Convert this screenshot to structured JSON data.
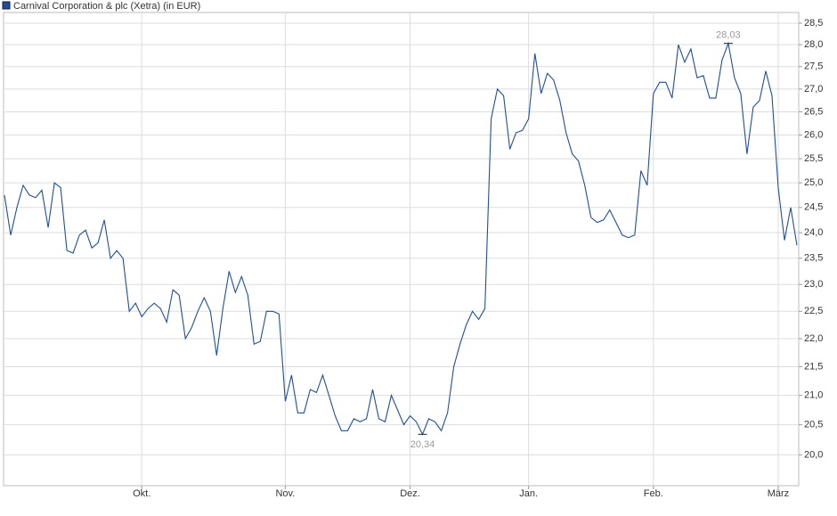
{
  "chart_data": {
    "type": "line",
    "categories": [
      null,
      null,
      null,
      null,
      null,
      null,
      null,
      null,
      null,
      null,
      null,
      null,
      null,
      null,
      null,
      null,
      null,
      null,
      null,
      null,
      null,
      null,
      "Okt.",
      null,
      null,
      null,
      null,
      null,
      null,
      null,
      null,
      null,
      null,
      null,
      null,
      null,
      null,
      null,
      null,
      null,
      null,
      null,
      null,
      null,
      null,
      "Nov.",
      null,
      null,
      null,
      null,
      null,
      null,
      null,
      null,
      null,
      null,
      null,
      null,
      null,
      null,
      null,
      null,
      null,
      null,
      null,
      "Dez.",
      null,
      null,
      null,
      null,
      null,
      null,
      null,
      null,
      null,
      null,
      null,
      null,
      null,
      null,
      null,
      null,
      null,
      null,
      "Jan.",
      null,
      null,
      null,
      null,
      null,
      null,
      null,
      null,
      null,
      null,
      null,
      null,
      null,
      null,
      null,
      null,
      null,
      null,
      null,
      "Feb.",
      null,
      null,
      null,
      null,
      null,
      null,
      null,
      null,
      null,
      null,
      null,
      null,
      null,
      null,
      null,
      null,
      null,
      null,
      null,
      "März",
      null,
      null,
      null
    ],
    "series": [
      {
        "name": "Carnival Corporation & plc (Xetra) (in EUR)",
        "color": "#1f4e9c",
        "values": [
          24.75,
          23.95,
          24.5,
          24.95,
          24.75,
          24.7,
          24.85,
          24.1,
          25.0,
          24.9,
          23.65,
          23.6,
          23.95,
          24.05,
          23.7,
          23.8,
          24.25,
          23.5,
          23.65,
          23.5,
          22.5,
          22.65,
          22.4,
          22.55,
          22.65,
          22.55,
          22.3,
          22.9,
          22.8,
          22.0,
          22.2,
          22.5,
          22.75,
          22.5,
          21.7,
          22.55,
          23.25,
          22.85,
          23.15,
          22.8,
          21.9,
          21.95,
          22.5,
          22.5,
          22.45,
          20.9,
          21.35,
          20.7,
          20.7,
          21.1,
          21.05,
          21.35,
          21.0,
          20.65,
          20.4,
          20.4,
          20.6,
          20.55,
          20.6,
          21.1,
          20.6,
          20.55,
          21.0,
          20.75,
          20.5,
          20.65,
          20.55,
          20.34,
          20.6,
          20.55,
          20.4,
          20.7,
          21.5,
          21.9,
          22.25,
          22.5,
          22.35,
          22.55,
          26.35,
          27.0,
          26.85,
          25.7,
          26.05,
          26.1,
          26.35,
          27.8,
          26.9,
          27.35,
          27.2,
          26.75,
          26.05,
          25.6,
          25.45,
          24.95,
          24.3,
          24.2,
          24.25,
          24.45,
          24.2,
          23.95,
          23.9,
          23.95,
          25.25,
          24.95,
          26.9,
          27.15,
          27.15,
          26.8,
          28.0,
          27.6,
          27.9,
          27.25,
          27.3,
          26.8,
          26.8,
          27.65,
          28.03,
          27.25,
          26.9,
          25.6,
          26.6,
          26.75,
          27.4,
          26.85,
          24.9,
          23.85,
          24.5,
          23.75
        ],
        "value_labels": [
          null,
          null,
          null,
          null,
          null,
          null,
          null,
          null,
          null,
          null,
          null,
          null,
          null,
          null,
          null,
          null,
          null,
          null,
          null,
          null,
          null,
          null,
          null,
          null,
          null,
          null,
          null,
          null,
          null,
          null,
          null,
          null,
          null,
          null,
          null,
          null,
          null,
          null,
          null,
          null,
          null,
          null,
          null,
          null,
          null,
          null,
          null,
          null,
          null,
          null,
          null,
          null,
          null,
          null,
          null,
          null,
          null,
          null,
          null,
          null,
          null,
          null,
          null,
          null,
          null,
          null,
          null,
          "20,34",
          null,
          null,
          null,
          null,
          null,
          null,
          null,
          null,
          null,
          null,
          null,
          null,
          null,
          null,
          null,
          null,
          null,
          null,
          null,
          null,
          null,
          null,
          null,
          null,
          null,
          null,
          null,
          null,
          null,
          null,
          null,
          null,
          null,
          null,
          null,
          null,
          null,
          null,
          null,
          null,
          null,
          null,
          null,
          null,
          null,
          null,
          null,
          null,
          "28,03",
          null,
          null,
          null,
          null,
          null,
          null,
          null,
          null,
          null,
          null,
          null
        ]
      }
    ],
    "ylim": [
      19.5,
      28.75
    ],
    "log_scale": true,
    "grid": true,
    "yticks": [
      {
        "value": 20,
        "label": "20,0"
      },
      {
        "value": 20.5,
        "label": "20,5"
      },
      {
        "value": 21,
        "label": "21,0"
      },
      {
        "value": 21.5,
        "label": "21,5"
      },
      {
        "value": 22,
        "label": "22,0"
      },
      {
        "value": 22.5,
        "label": "22,5"
      },
      {
        "value": 23,
        "label": "23,0"
      },
      {
        "value": 23.5,
        "label": "23,5"
      },
      {
        "value": 24,
        "label": "24,0"
      },
      {
        "value": 24.5,
        "label": "24,5"
      },
      {
        "value": 25,
        "label": "25,0"
      },
      {
        "value": 25.5,
        "label": "25,5"
      },
      {
        "value": 26,
        "label": "26,0"
      },
      {
        "value": 26.5,
        "label": "26,5"
      },
      {
        "value": 27,
        "label": "27,0"
      },
      {
        "value": 27.5,
        "label": "27,5"
      },
      {
        "value": 28,
        "label": "28,0"
      },
      {
        "value": 28.5,
        "label": "28,5"
      }
    ]
  }
}
